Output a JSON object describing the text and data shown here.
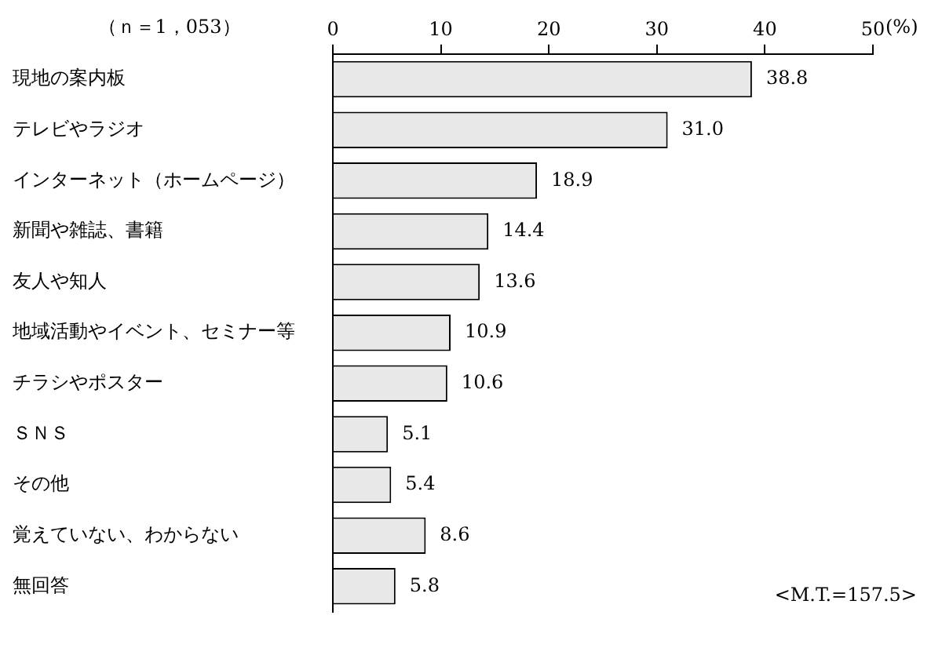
{
  "chart_data": {
    "type": "bar",
    "orientation": "horizontal",
    "title": "（ｎ＝1，053）",
    "xlabel": "(%)",
    "categories": [
      "現地の案内板",
      "テレビやラジオ",
      "インターネット（ホームページ）",
      "新聞や雑誌、書籍",
      "友人や知人",
      "地域活動やイベント、セミナー等",
      "チラシやポスター",
      "ＳＮＳ",
      "その他",
      "覚えていない、わからない",
      "無回答"
    ],
    "values": [
      38.8,
      31.0,
      18.9,
      14.4,
      13.6,
      10.9,
      10.6,
      5.1,
      5.4,
      8.6,
      5.8
    ],
    "value_labels": [
      "38.8",
      "31.0",
      "18.9",
      "14.4",
      "13.6",
      "10.9",
      "10.6",
      "5.1",
      "5.4",
      "8.6",
      "5.8"
    ],
    "color": "#e8e8e8",
    "xlim": [
      0,
      50
    ],
    "xticks": [
      0,
      10,
      20,
      30,
      40,
      50
    ],
    "grid": false,
    "legend": false,
    "annotations": [
      "<M.T.=157.5>"
    ]
  }
}
